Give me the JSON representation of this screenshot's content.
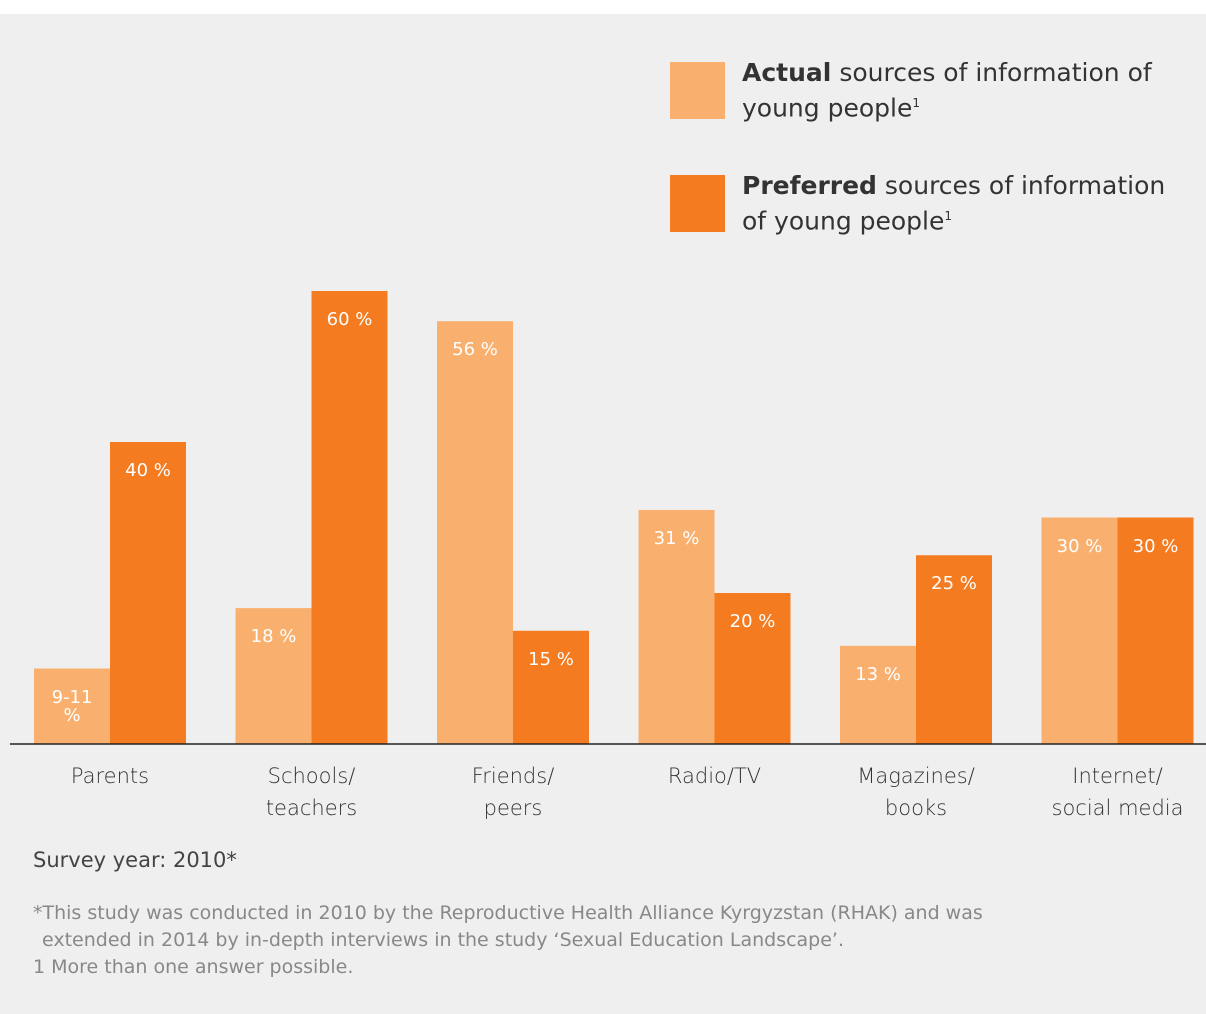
{
  "chart_data": {
    "type": "bar",
    "categories": [
      "Parents",
      "Schools/\nteachers",
      "Friends/\npeers",
      "Radio/TV",
      "Magazines/\nbooks",
      "Internet/\nsocial media"
    ],
    "series": [
      {
        "name": "Actual",
        "color": "#f9b06e",
        "values": [
          10,
          18,
          56,
          31,
          13,
          30
        ],
        "value_labels": [
          "9-11 %",
          "18 %",
          "56 %",
          "31 %",
          "13 %",
          "30 %"
        ]
      },
      {
        "name": "Preferred",
        "color": "#f47b20",
        "values": [
          40,
          60,
          15,
          20,
          25,
          30
        ],
        "value_labels": [
          "40 %",
          "60 %",
          "15 %",
          "20 %",
          "25 %",
          "30 %"
        ]
      }
    ],
    "legend_text": "sources of information of young people",
    "legend_note": "1",
    "ylim": [
      0,
      60
    ],
    "subtitle": "Survey year: 2010*",
    "notes": [
      "*This study was conducted in 2010 by the Reproductive Health Alliance Kyrgyzstan (RHAK) and was",
      "extended in 2014 by in-depth interviews in the study ‘Sexual Education Landscape’.",
      "1 More than one answer possible."
    ]
  }
}
